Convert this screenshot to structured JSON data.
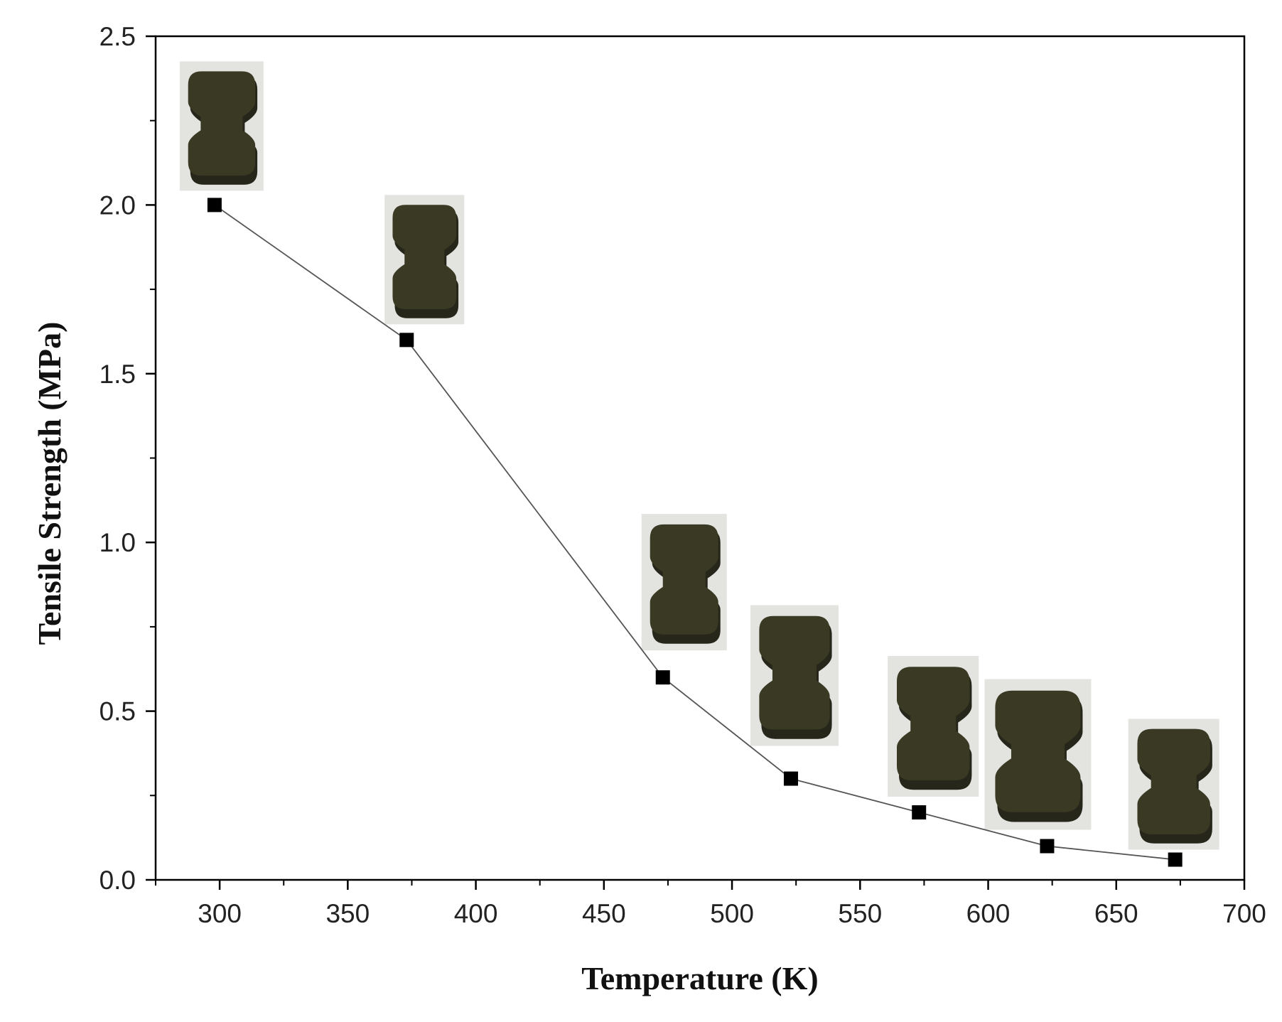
{
  "chart_data": {
    "type": "line",
    "title": "",
    "xlabel": "Temperature (K)",
    "ylabel": "Tensile Strength (MPa)",
    "xlim": [
      275,
      700
    ],
    "ylim": [
      0,
      2.5
    ],
    "x_ticks": [
      "300",
      "350",
      "400",
      "450",
      "500",
      "550",
      "600",
      "650",
      "700"
    ],
    "y_ticks": [
      "0.0",
      "0.5",
      "1.0",
      "1.5",
      "2.0",
      "2.5"
    ],
    "grid": false,
    "legend": "none",
    "marker": "square",
    "series": [
      {
        "x": [
          298,
          373,
          473,
          523,
          573,
          623,
          673
        ],
        "y": [
          2.0,
          1.6,
          0.6,
          0.3,
          0.2,
          0.1,
          0.06
        ]
      }
    ],
    "annotations": "photograph of dog-bone specimen above each data point"
  },
  "colors": {
    "line": "#555555",
    "marker": "#000000",
    "axis": "#000000",
    "specimen": "#3a3a24",
    "specimen_dark": "#26261a",
    "photo_bg": "#e3e3e0"
  }
}
